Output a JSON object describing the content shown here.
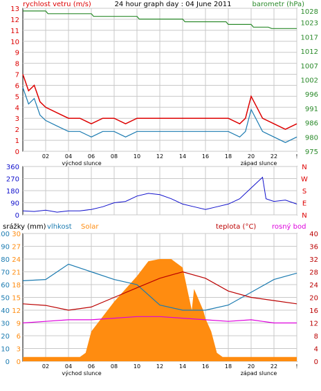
{
  "header": {
    "left_label": "rychlost vetru (m/s)",
    "title": "24 hour graph day : 04 June 2011",
    "right_label": "barometr (hPa)"
  },
  "colors": {
    "wind": "#dd0000",
    "wind_avg": "#1a7ab0",
    "baro": "#2a8a2a",
    "dir": "#1010cc",
    "humidity": "#1a7ab0",
    "solar": "#ff8c10",
    "temp": "#bb0000",
    "dew": "#dd00dd",
    "grid": "#c8c8c8"
  },
  "time_axis": {
    "ticks": [
      "02",
      "04",
      "06",
      "08",
      "10",
      "12",
      "14",
      "16",
      "18",
      "20",
      "22",
      "!"
    ],
    "sunrise_label": "východ slunce",
    "sunset_label": "západ slunce"
  },
  "panel_wind": {
    "left_ticks": [
      "13",
      "12",
      "11",
      "10",
      "9",
      "8",
      "7",
      "6",
      "5",
      "4",
      "3",
      "2",
      "1",
      "0"
    ],
    "right_ticks": [
      "1028",
      "1023",
      "1017",
      "1012",
      "1007",
      "1002",
      "996",
      "991",
      "986",
      "980",
      "975"
    ]
  },
  "panel_dir": {
    "left_ticks": [
      "360",
      "270",
      "180",
      "90",
      "0"
    ],
    "right_labels": [
      "N",
      "W",
      "S",
      "E",
      "N"
    ]
  },
  "panel_temp": {
    "label_rain": "srážky (mm)",
    "label_humidity": "vlhkost",
    "label_solar": "Solar",
    "label_temp": "teplota (°C)",
    "label_dew": "rosný bod",
    "left_ticks_rain": [
      "100",
      "90",
      "80",
      "70",
      "60",
      "50",
      "40",
      "30",
      "20",
      "10",
      "0"
    ],
    "left_ticks_hum": [
      "30",
      "27",
      "24",
      "21",
      "18",
      "15",
      "12",
      "9",
      "6",
      "3",
      "0"
    ],
    "right_ticks": [
      "40",
      "36",
      "32",
      "28",
      "24",
      "20",
      "16",
      "12",
      "8",
      "4",
      "0"
    ]
  },
  "chart_data": [
    {
      "type": "line",
      "title": "24 hour graph day : 04 June 2011",
      "x_unit": "hour",
      "xlim": [
        0,
        24
      ],
      "series": [
        {
          "name": "rychlost vetru (m/s)",
          "axis": "left",
          "ylim": [
            0,
            13
          ],
          "x": [
            0,
            0.5,
            1,
            1.5,
            2,
            3,
            4,
            5,
            6,
            7,
            8,
            9,
            10,
            11,
            12,
            13,
            14,
            15,
            16,
            17,
            18,
            19,
            19.5,
            20,
            20.5,
            21,
            22,
            23,
            24
          ],
          "values": [
            7,
            5.5,
            6,
            4.5,
            4,
            3.5,
            3,
            3,
            2.5,
            3,
            3,
            2.5,
            3,
            3,
            3,
            3,
            3,
            3,
            3,
            3,
            3,
            2.5,
            3,
            5,
            4,
            3,
            2.5,
            2,
            2.5
          ]
        },
        {
          "name": "barometr (hPa)",
          "axis": "right",
          "ylim": [
            975,
            1028
          ],
          "x": [
            0,
            2,
            2.2,
            6,
            6.2,
            10,
            10.2,
            14,
            14.2,
            17.8,
            18,
            20,
            20.2,
            21.5,
            21.8,
            24
          ],
          "values": [
            1027,
            1027,
            1026,
            1026,
            1025,
            1025,
            1024,
            1024,
            1023,
            1023,
            1022,
            1022,
            1021,
            1021,
            1020.5,
            1020.5
          ]
        }
      ]
    },
    {
      "type": "line",
      "ylabel": "",
      "xlim": [
        0,
        24
      ],
      "ylim": [
        0,
        360
      ],
      "series": [
        {
          "name": "",
          "x": [
            0,
            1,
            2,
            3,
            4,
            5,
            6,
            7,
            8,
            9,
            10,
            11,
            12,
            13,
            14,
            15,
            16,
            17,
            18,
            19,
            20,
            21,
            21.3,
            22,
            23,
            24
          ],
          "values": [
            30,
            25,
            35,
            20,
            30,
            30,
            40,
            60,
            90,
            100,
            140,
            160,
            150,
            120,
            80,
            60,
            40,
            60,
            80,
            120,
            200,
            280,
            120,
            100,
            110,
            80
          ]
        }
      ]
    },
    {
      "type": "area",
      "xlim": [
        0,
        24
      ],
      "series": [
        {
          "name": "teplota (°C)",
          "axis": "right",
          "ylim": [
            0,
            40
          ],
          "x": [
            0,
            2,
            4,
            6,
            8,
            10,
            12,
            14,
            16,
            18,
            20,
            22,
            24
          ],
          "values": [
            18,
            17.5,
            16,
            17,
            20,
            23,
            26,
            28,
            26,
            22,
            20,
            19,
            18
          ]
        },
        {
          "name": "rosný bod",
          "axis": "right",
          "ylim": [
            0,
            40
          ],
          "x": [
            0,
            2,
            4,
            6,
            8,
            10,
            12,
            14,
            16,
            18,
            20,
            22,
            24
          ],
          "values": [
            12,
            12.5,
            13,
            13,
            13.5,
            14,
            14,
            13.5,
            13,
            12.5,
            13,
            12,
            12
          ]
        },
        {
          "name": "vlhkost",
          "axis": "left",
          "ylim": [
            0,
            100
          ],
          "x": [
            0,
            2,
            4,
            6,
            8,
            10,
            12,
            14,
            16,
            18,
            20,
            22,
            24
          ],
          "values": [
            63,
            64,
            76,
            70,
            64,
            60,
            44,
            40,
            40,
            44,
            54,
            64,
            69
          ]
        },
        {
          "name": "Solar",
          "axis": "left",
          "ylim": [
            0,
            30
          ],
          "x": [
            0,
            5,
            5.5,
            6,
            8,
            10,
            11,
            12,
            13,
            14,
            14.8,
            15,
            15.8,
            16,
            16.5,
            17,
            17.5,
            24
          ],
          "values": [
            1,
            1,
            2,
            7,
            14,
            20,
            23.5,
            24,
            24,
            22,
            12,
            17,
            12,
            10,
            7,
            2,
            1,
            1
          ]
        }
      ]
    }
  ]
}
